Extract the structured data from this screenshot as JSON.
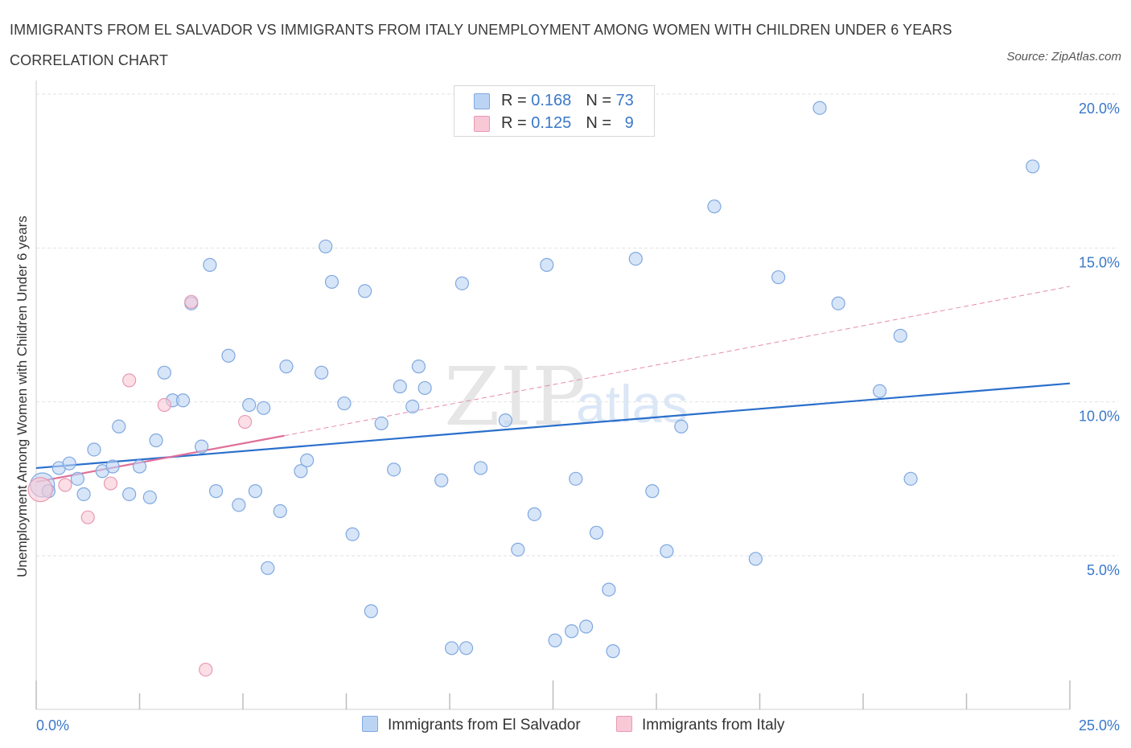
{
  "title": "IMMIGRANTS FROM EL SALVADOR VS IMMIGRANTS FROM ITALY UNEMPLOYMENT AMONG WOMEN WITH CHILDREN UNDER 6 YEARS CORRELATION CHART",
  "source": "Source: ZipAtlas.com",
  "watermark": {
    "zip": "ZIP",
    "atlas": "atlas"
  },
  "legend_top": [
    {
      "r_label": "R = ",
      "r_value": "0.168",
      "n_label": "N = ",
      "n_value": "73"
    },
    {
      "r_label": "R = ",
      "r_value": "0.125",
      "n_label": "N = ",
      "n_value": "9"
    }
  ],
  "colors": {
    "el_salvador_fill": "#bcd4f4",
    "el_salvador_stroke": "#7fa8e0",
    "el_salvador_line": "#2a6fcc",
    "italy_fill": "#f8c8d6",
    "italy_stroke": "#e89ab2",
    "italy_line": "#e0709a",
    "axis_label": "#3a78c9"
  },
  "chart_data": {
    "type": "scatter",
    "title": "IMMIGRANTS FROM EL SALVADOR VS IMMIGRANTS FROM ITALY UNEMPLOYMENT AMONG WOMEN WITH CHILDREN UNDER 6 YEARS CORRELATION CHART",
    "xlabel": "",
    "ylabel": "Unemployment Among Women with Children Under 6 years",
    "xlim": [
      0,
      25
    ],
    "ylim": [
      0,
      20.5
    ],
    "x_tick_labels": [
      "0.0%",
      "25.0%"
    ],
    "y_ticks": [
      5,
      10,
      15,
      20
    ],
    "y_tick_labels": [
      "5.0%",
      "10.0%",
      "15.0%",
      "20.0%"
    ],
    "grid": true,
    "legend_position": "top-center",
    "series": [
      {
        "name": "Immigrants from El Salvador",
        "R": 0.168,
        "N": 73,
        "trend": {
          "x": [
            0,
            25
          ],
          "y": [
            7.85,
            10.6
          ],
          "style": "solid"
        },
        "points": [
          {
            "x": 0.15,
            "y": 7.3,
            "big": true
          },
          {
            "x": 0.3,
            "y": 7.1
          },
          {
            "x": 0.55,
            "y": 7.85
          },
          {
            "x": 0.8,
            "y": 8.0
          },
          {
            "x": 1.0,
            "y": 7.5
          },
          {
            "x": 1.15,
            "y": 7.0
          },
          {
            "x": 1.4,
            "y": 8.45
          },
          {
            "x": 1.6,
            "y": 7.75
          },
          {
            "x": 1.85,
            "y": 7.9
          },
          {
            "x": 2.0,
            "y": 9.2
          },
          {
            "x": 2.25,
            "y": 7.0
          },
          {
            "x": 2.5,
            "y": 7.9
          },
          {
            "x": 2.75,
            "y": 6.9
          },
          {
            "x": 2.9,
            "y": 8.75
          },
          {
            "x": 3.1,
            "y": 10.95
          },
          {
            "x": 3.3,
            "y": 10.05
          },
          {
            "x": 3.55,
            "y": 10.05
          },
          {
            "x": 3.75,
            "y": 13.2
          },
          {
            "x": 4.0,
            "y": 8.55
          },
          {
            "x": 4.2,
            "y": 14.45
          },
          {
            "x": 4.35,
            "y": 7.1
          },
          {
            "x": 4.65,
            "y": 11.5
          },
          {
            "x": 4.9,
            "y": 6.65
          },
          {
            "x": 5.15,
            "y": 9.9
          },
          {
            "x": 5.3,
            "y": 7.1
          },
          {
            "x": 5.5,
            "y": 9.8
          },
          {
            "x": 5.6,
            "y": 4.6
          },
          {
            "x": 5.9,
            "y": 6.45
          },
          {
            "x": 6.05,
            "y": 11.15
          },
          {
            "x": 6.4,
            "y": 7.75
          },
          {
            "x": 6.55,
            "y": 8.1
          },
          {
            "x": 6.9,
            "y": 10.95
          },
          {
            "x": 7.0,
            "y": 15.05
          },
          {
            "x": 7.15,
            "y": 13.9
          },
          {
            "x": 7.45,
            "y": 9.95
          },
          {
            "x": 7.65,
            "y": 5.7
          },
          {
            "x": 7.95,
            "y": 13.6
          },
          {
            "x": 8.1,
            "y": 3.2
          },
          {
            "x": 8.35,
            "y": 9.3
          },
          {
            "x": 8.65,
            "y": 7.8
          },
          {
            "x": 8.8,
            "y": 10.5
          },
          {
            "x": 9.1,
            "y": 9.85
          },
          {
            "x": 9.25,
            "y": 11.15
          },
          {
            "x": 9.4,
            "y": 10.45
          },
          {
            "x": 9.8,
            "y": 7.45
          },
          {
            "x": 10.05,
            "y": 2.0
          },
          {
            "x": 10.3,
            "y": 13.85
          },
          {
            "x": 10.4,
            "y": 2.0
          },
          {
            "x": 10.75,
            "y": 7.85
          },
          {
            "x": 11.35,
            "y": 9.4
          },
          {
            "x": 11.65,
            "y": 5.2
          },
          {
            "x": 12.05,
            "y": 6.35
          },
          {
            "x": 12.35,
            "y": 14.45
          },
          {
            "x": 12.55,
            "y": 2.25
          },
          {
            "x": 12.95,
            "y": 2.55
          },
          {
            "x": 13.05,
            "y": 7.5
          },
          {
            "x": 13.3,
            "y": 2.7
          },
          {
            "x": 13.55,
            "y": 5.75
          },
          {
            "x": 13.85,
            "y": 3.9
          },
          {
            "x": 13.95,
            "y": 1.9
          },
          {
            "x": 14.5,
            "y": 14.65
          },
          {
            "x": 14.9,
            "y": 7.1
          },
          {
            "x": 15.25,
            "y": 5.15
          },
          {
            "x": 15.6,
            "y": 9.2
          },
          {
            "x": 16.4,
            "y": 16.35
          },
          {
            "x": 17.4,
            "y": 4.9
          },
          {
            "x": 17.95,
            "y": 14.05
          },
          {
            "x": 18.95,
            "y": 19.55
          },
          {
            "x": 19.4,
            "y": 13.2
          },
          {
            "x": 20.4,
            "y": 10.35
          },
          {
            "x": 20.9,
            "y": 12.15
          },
          {
            "x": 21.15,
            "y": 7.5
          },
          {
            "x": 24.1,
            "y": 17.65
          }
        ]
      },
      {
        "name": "Immigrants from Italy",
        "R": 0.125,
        "N": 9,
        "trend": {
          "x": [
            0,
            6.0
          ],
          "y": [
            7.4,
            8.9
          ],
          "style": "solid",
          "extended": {
            "x": [
              6.0,
              25
            ],
            "y": [
              8.9,
              13.75
            ],
            "style": "dashed"
          }
        },
        "points": [
          {
            "x": 0.1,
            "y": 7.15,
            "big": true
          },
          {
            "x": 0.7,
            "y": 7.3
          },
          {
            "x": 1.25,
            "y": 6.25
          },
          {
            "x": 1.8,
            "y": 7.35
          },
          {
            "x": 2.25,
            "y": 10.7
          },
          {
            "x": 3.1,
            "y": 9.9
          },
          {
            "x": 3.75,
            "y": 13.25
          },
          {
            "x": 4.1,
            "y": 1.3
          },
          {
            "x": 5.05,
            "y": 9.35
          }
        ]
      }
    ]
  }
}
